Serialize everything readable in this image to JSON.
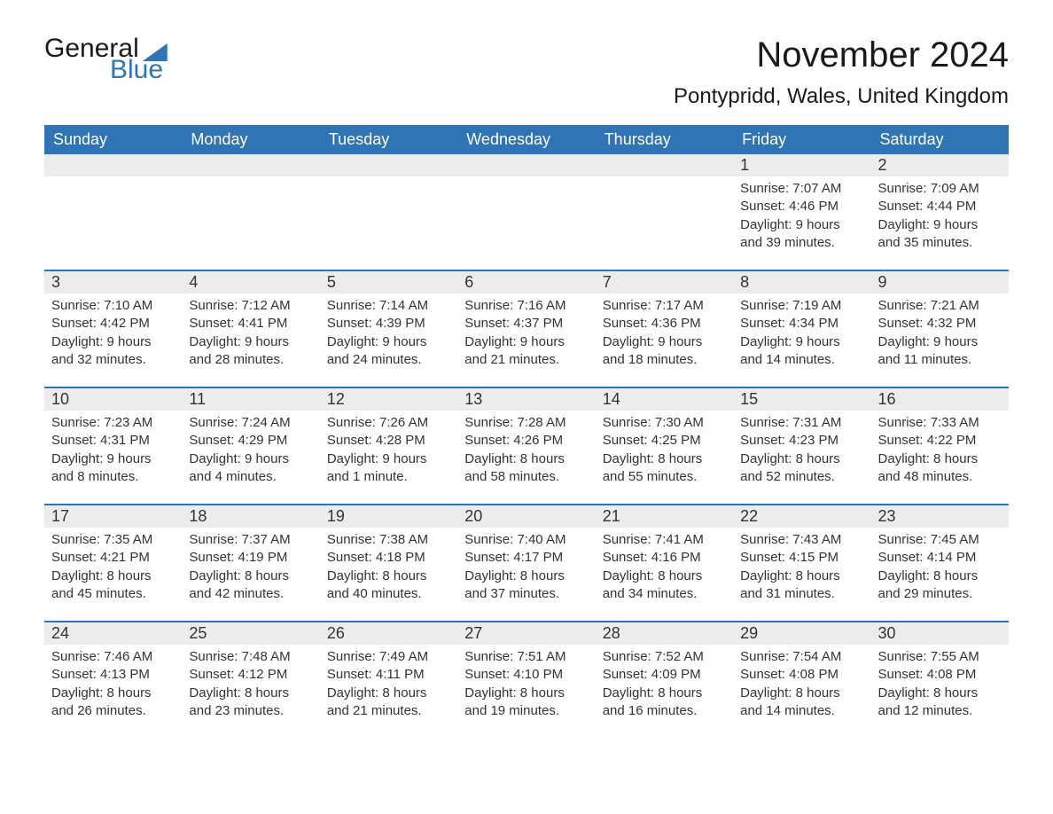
{
  "logo": {
    "text1": "General",
    "text2": "Blue"
  },
  "brand_color": "#2f74b5",
  "header_bg": "#2f74b5",
  "header_fg": "#ffffff",
  "daynum_bg": "#ececec",
  "page_bg": "#ffffff",
  "text_color": "#333333",
  "divider_color": "#2f74b5",
  "title": "November 2024",
  "location": "Pontypridd, Wales, United Kingdom",
  "title_fontsize": 40,
  "location_fontsize": 24,
  "dow_fontsize": 18,
  "body_fontsize": 15,
  "days_of_week": [
    "Sunday",
    "Monday",
    "Tuesday",
    "Wednesday",
    "Thursday",
    "Friday",
    "Saturday"
  ],
  "weeks": [
    [
      {
        "empty": true
      },
      {
        "empty": true
      },
      {
        "empty": true
      },
      {
        "empty": true
      },
      {
        "empty": true
      },
      {
        "num": "1",
        "sunrise": "Sunrise: 7:07 AM",
        "sunset": "Sunset: 4:46 PM",
        "daylight1": "Daylight: 9 hours",
        "daylight2": "and 39 minutes."
      },
      {
        "num": "2",
        "sunrise": "Sunrise: 7:09 AM",
        "sunset": "Sunset: 4:44 PM",
        "daylight1": "Daylight: 9 hours",
        "daylight2": "and 35 minutes."
      }
    ],
    [
      {
        "num": "3",
        "sunrise": "Sunrise: 7:10 AM",
        "sunset": "Sunset: 4:42 PM",
        "daylight1": "Daylight: 9 hours",
        "daylight2": "and 32 minutes."
      },
      {
        "num": "4",
        "sunrise": "Sunrise: 7:12 AM",
        "sunset": "Sunset: 4:41 PM",
        "daylight1": "Daylight: 9 hours",
        "daylight2": "and 28 minutes."
      },
      {
        "num": "5",
        "sunrise": "Sunrise: 7:14 AM",
        "sunset": "Sunset: 4:39 PM",
        "daylight1": "Daylight: 9 hours",
        "daylight2": "and 24 minutes."
      },
      {
        "num": "6",
        "sunrise": "Sunrise: 7:16 AM",
        "sunset": "Sunset: 4:37 PM",
        "daylight1": "Daylight: 9 hours",
        "daylight2": "and 21 minutes."
      },
      {
        "num": "7",
        "sunrise": "Sunrise: 7:17 AM",
        "sunset": "Sunset: 4:36 PM",
        "daylight1": "Daylight: 9 hours",
        "daylight2": "and 18 minutes."
      },
      {
        "num": "8",
        "sunrise": "Sunrise: 7:19 AM",
        "sunset": "Sunset: 4:34 PM",
        "daylight1": "Daylight: 9 hours",
        "daylight2": "and 14 minutes."
      },
      {
        "num": "9",
        "sunrise": "Sunrise: 7:21 AM",
        "sunset": "Sunset: 4:32 PM",
        "daylight1": "Daylight: 9 hours",
        "daylight2": "and 11 minutes."
      }
    ],
    [
      {
        "num": "10",
        "sunrise": "Sunrise: 7:23 AM",
        "sunset": "Sunset: 4:31 PM",
        "daylight1": "Daylight: 9 hours",
        "daylight2": "and 8 minutes."
      },
      {
        "num": "11",
        "sunrise": "Sunrise: 7:24 AM",
        "sunset": "Sunset: 4:29 PM",
        "daylight1": "Daylight: 9 hours",
        "daylight2": "and 4 minutes."
      },
      {
        "num": "12",
        "sunrise": "Sunrise: 7:26 AM",
        "sunset": "Sunset: 4:28 PM",
        "daylight1": "Daylight: 9 hours",
        "daylight2": "and 1 minute."
      },
      {
        "num": "13",
        "sunrise": "Sunrise: 7:28 AM",
        "sunset": "Sunset: 4:26 PM",
        "daylight1": "Daylight: 8 hours",
        "daylight2": "and 58 minutes."
      },
      {
        "num": "14",
        "sunrise": "Sunrise: 7:30 AM",
        "sunset": "Sunset: 4:25 PM",
        "daylight1": "Daylight: 8 hours",
        "daylight2": "and 55 minutes."
      },
      {
        "num": "15",
        "sunrise": "Sunrise: 7:31 AM",
        "sunset": "Sunset: 4:23 PM",
        "daylight1": "Daylight: 8 hours",
        "daylight2": "and 52 minutes."
      },
      {
        "num": "16",
        "sunrise": "Sunrise: 7:33 AM",
        "sunset": "Sunset: 4:22 PM",
        "daylight1": "Daylight: 8 hours",
        "daylight2": "and 48 minutes."
      }
    ],
    [
      {
        "num": "17",
        "sunrise": "Sunrise: 7:35 AM",
        "sunset": "Sunset: 4:21 PM",
        "daylight1": "Daylight: 8 hours",
        "daylight2": "and 45 minutes."
      },
      {
        "num": "18",
        "sunrise": "Sunrise: 7:37 AM",
        "sunset": "Sunset: 4:19 PM",
        "daylight1": "Daylight: 8 hours",
        "daylight2": "and 42 minutes."
      },
      {
        "num": "19",
        "sunrise": "Sunrise: 7:38 AM",
        "sunset": "Sunset: 4:18 PM",
        "daylight1": "Daylight: 8 hours",
        "daylight2": "and 40 minutes."
      },
      {
        "num": "20",
        "sunrise": "Sunrise: 7:40 AM",
        "sunset": "Sunset: 4:17 PM",
        "daylight1": "Daylight: 8 hours",
        "daylight2": "and 37 minutes."
      },
      {
        "num": "21",
        "sunrise": "Sunrise: 7:41 AM",
        "sunset": "Sunset: 4:16 PM",
        "daylight1": "Daylight: 8 hours",
        "daylight2": "and 34 minutes."
      },
      {
        "num": "22",
        "sunrise": "Sunrise: 7:43 AM",
        "sunset": "Sunset: 4:15 PM",
        "daylight1": "Daylight: 8 hours",
        "daylight2": "and 31 minutes."
      },
      {
        "num": "23",
        "sunrise": "Sunrise: 7:45 AM",
        "sunset": "Sunset: 4:14 PM",
        "daylight1": "Daylight: 8 hours",
        "daylight2": "and 29 minutes."
      }
    ],
    [
      {
        "num": "24",
        "sunrise": "Sunrise: 7:46 AM",
        "sunset": "Sunset: 4:13 PM",
        "daylight1": "Daylight: 8 hours",
        "daylight2": "and 26 minutes."
      },
      {
        "num": "25",
        "sunrise": "Sunrise: 7:48 AM",
        "sunset": "Sunset: 4:12 PM",
        "daylight1": "Daylight: 8 hours",
        "daylight2": "and 23 minutes."
      },
      {
        "num": "26",
        "sunrise": "Sunrise: 7:49 AM",
        "sunset": "Sunset: 4:11 PM",
        "daylight1": "Daylight: 8 hours",
        "daylight2": "and 21 minutes."
      },
      {
        "num": "27",
        "sunrise": "Sunrise: 7:51 AM",
        "sunset": "Sunset: 4:10 PM",
        "daylight1": "Daylight: 8 hours",
        "daylight2": "and 19 minutes."
      },
      {
        "num": "28",
        "sunrise": "Sunrise: 7:52 AM",
        "sunset": "Sunset: 4:09 PM",
        "daylight1": "Daylight: 8 hours",
        "daylight2": "and 16 minutes."
      },
      {
        "num": "29",
        "sunrise": "Sunrise: 7:54 AM",
        "sunset": "Sunset: 4:08 PM",
        "daylight1": "Daylight: 8 hours",
        "daylight2": "and 14 minutes."
      },
      {
        "num": "30",
        "sunrise": "Sunrise: 7:55 AM",
        "sunset": "Sunset: 4:08 PM",
        "daylight1": "Daylight: 8 hours",
        "daylight2": "and 12 minutes."
      }
    ]
  ]
}
